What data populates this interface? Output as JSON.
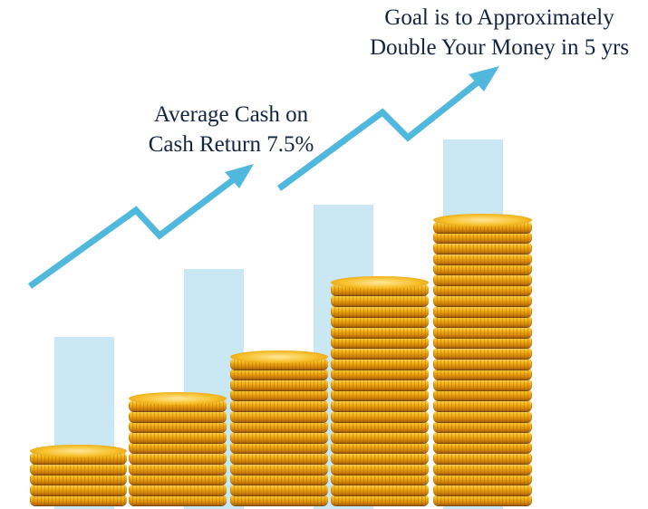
{
  "captions": {
    "cash_return_line1": "Average Cash on",
    "cash_return_line2": "Cash Return 7.5%",
    "goal_line1": "Goal is to Approximately",
    "goal_line2": "Double Your Money in 5 yrs"
  },
  "colors": {
    "text": "#14233f",
    "arrow": "#4fb8dc",
    "bar": "#c9e8f4",
    "coin": "#f5b516"
  },
  "icons": [
    "growth-arrow",
    "coin-stack"
  ]
}
